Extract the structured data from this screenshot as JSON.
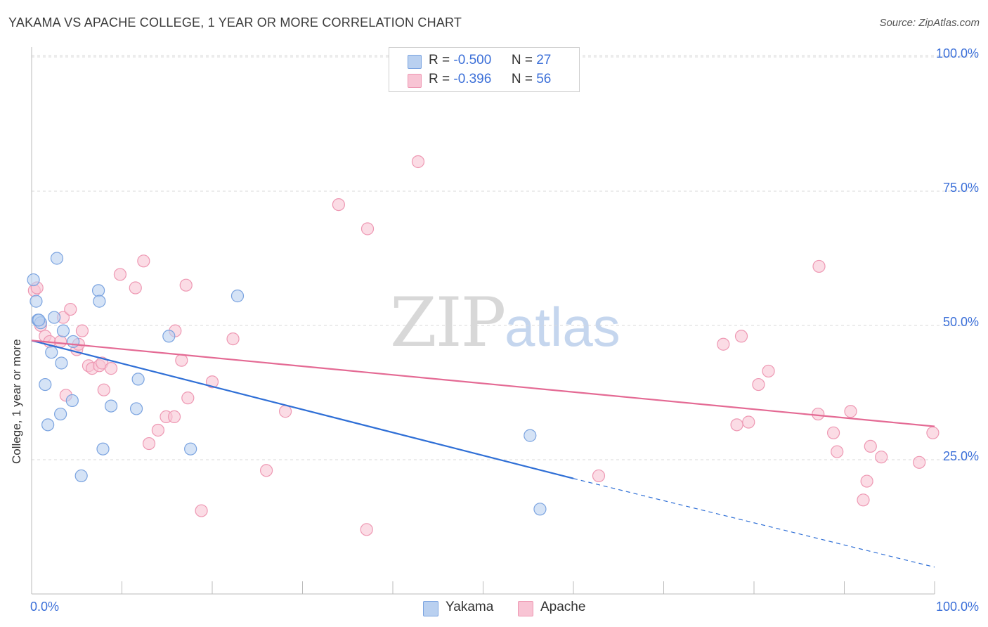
{
  "title": "YAKAMA VS APACHE COLLEGE, 1 YEAR OR MORE CORRELATION CHART",
  "source": "Source: ZipAtlas.com",
  "watermark": {
    "zip": "ZIP",
    "atlas": "atlas"
  },
  "colors": {
    "yakama_fill": "#b9d0f0",
    "yakama_stroke": "#7aa3e0",
    "yakama_line": "#2f6fd6",
    "apache_fill": "#f8c4d4",
    "apache_stroke": "#ee98b3",
    "apache_line": "#e46a94",
    "axis_text": "#3b6fd8",
    "grid": "#d9d9d9"
  },
  "legend": {
    "rows": [
      {
        "r_label": "R =",
        "r_value": "-0.500",
        "n_label": "N =",
        "n_value": "27"
      },
      {
        "r_label": "R =",
        "r_value": "-0.396",
        "n_label": "N =",
        "n_value": "56"
      }
    ]
  },
  "bottom_legend": {
    "yakama": "Yakama",
    "apache": "Apache"
  },
  "chart_data": {
    "type": "scatter",
    "title": "YAKAMA VS APACHE COLLEGE, 1 YEAR OR MORE CORRELATION CHART",
    "xlabel": "",
    "ylabel": "College, 1 year or more",
    "xlim": [
      0,
      100
    ],
    "ylim": [
      0,
      105
    ],
    "x_tick_labels": [
      "0.0%",
      "100.0%"
    ],
    "y_tick_labels": [
      "25.0%",
      "50.0%",
      "75.0%",
      "100.0%"
    ],
    "y_ticks": [
      25,
      50,
      75,
      100
    ],
    "grid": true,
    "legend_position": "top-center",
    "series": [
      {
        "name": "Yakama",
        "points": [
          [
            0.2,
            58.5
          ],
          [
            0.5,
            54.5
          ],
          [
            0.7,
            51.0
          ],
          [
            1.0,
            50.5
          ],
          [
            1.5,
            39.0
          ],
          [
            1.8,
            31.5
          ],
          [
            2.2,
            45.0
          ],
          [
            2.5,
            51.5
          ],
          [
            2.8,
            62.5
          ],
          [
            3.2,
            33.5
          ],
          [
            3.3,
            43.0
          ],
          [
            3.5,
            49.0
          ],
          [
            4.5,
            36.0
          ],
          [
            4.6,
            47.0
          ],
          [
            5.5,
            22.0
          ],
          [
            7.4,
            56.5
          ],
          [
            7.5,
            54.5
          ],
          [
            7.9,
            27.0
          ],
          [
            8.8,
            35.0
          ],
          [
            11.6,
            34.5
          ],
          [
            11.8,
            40.0
          ],
          [
            15.2,
            48.0
          ],
          [
            17.6,
            27.0
          ],
          [
            22.8,
            55.5
          ],
          [
            55.2,
            29.5
          ],
          [
            56.3,
            15.8
          ],
          [
            0.8,
            51.0
          ]
        ],
        "trend": {
          "x": [
            0,
            60
          ],
          "y": [
            47.2,
            21.5
          ],
          "dashed_to": [
            100,
            5.0
          ]
        }
      },
      {
        "name": "Apache",
        "points": [
          [
            0.3,
            56.5
          ],
          [
            1.0,
            50.0
          ],
          [
            1.5,
            48.0
          ],
          [
            2.0,
            47.0
          ],
          [
            3.2,
            47.0
          ],
          [
            3.5,
            51.5
          ],
          [
            3.8,
            37.0
          ],
          [
            4.3,
            53.0
          ],
          [
            5.0,
            45.5
          ],
          [
            5.2,
            46.5
          ],
          [
            5.6,
            49.0
          ],
          [
            6.3,
            42.5
          ],
          [
            6.7,
            42.0
          ],
          [
            7.5,
            42.5
          ],
          [
            7.8,
            43.0
          ],
          [
            8.0,
            38.0
          ],
          [
            8.8,
            42.0
          ],
          [
            9.8,
            59.5
          ],
          [
            11.5,
            57.0
          ],
          [
            12.4,
            62.0
          ],
          [
            13.0,
            28.0
          ],
          [
            14.0,
            30.5
          ],
          [
            14.9,
            33.0
          ],
          [
            15.8,
            33.0
          ],
          [
            15.9,
            49.0
          ],
          [
            16.6,
            43.5
          ],
          [
            17.1,
            57.5
          ],
          [
            17.3,
            36.5
          ],
          [
            18.8,
            15.5
          ],
          [
            20.0,
            39.5
          ],
          [
            22.3,
            47.5
          ],
          [
            26.0,
            23.0
          ],
          [
            28.1,
            34.0
          ],
          [
            34.0,
            72.5
          ],
          [
            37.1,
            12.0
          ],
          [
            37.2,
            68.0
          ],
          [
            42.8,
            80.5
          ],
          [
            62.8,
            22.0
          ],
          [
            76.6,
            46.5
          ],
          [
            78.1,
            31.5
          ],
          [
            78.6,
            48.0
          ],
          [
            79.4,
            32.0
          ],
          [
            80.5,
            39.0
          ],
          [
            81.6,
            41.5
          ],
          [
            87.1,
            33.5
          ],
          [
            87.2,
            61.0
          ],
          [
            88.8,
            30.0
          ],
          [
            89.2,
            26.5
          ],
          [
            90.7,
            34.0
          ],
          [
            92.1,
            17.5
          ],
          [
            92.5,
            21.0
          ],
          [
            92.9,
            27.5
          ],
          [
            94.1,
            25.5
          ],
          [
            98.3,
            24.5
          ],
          [
            99.8,
            30.0
          ],
          [
            0.6,
            57.0
          ]
        ],
        "trend": {
          "x": [
            0,
            100
          ],
          "y": [
            47.2,
            31.2
          ]
        }
      }
    ]
  }
}
